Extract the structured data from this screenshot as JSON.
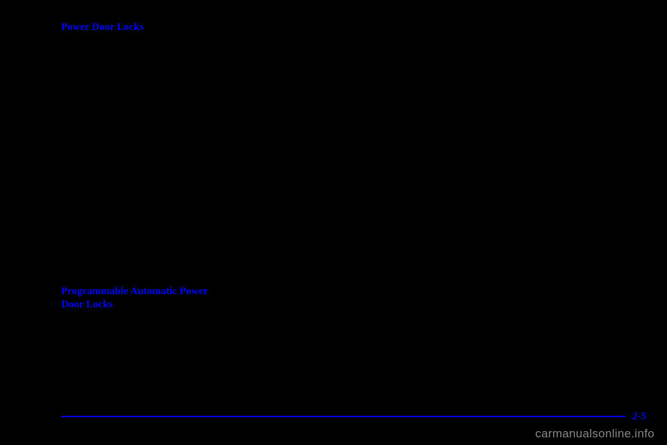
{
  "sections": {
    "header1": "Power Door Locks",
    "header2_line1": "Programmable Automatic Power",
    "header2_line2": "Door Locks"
  },
  "page_number": "2-5",
  "watermark": "carmanualsonline.info",
  "colors": {
    "background": "#000000",
    "accent": "#0000ff",
    "watermark": "#888888"
  }
}
